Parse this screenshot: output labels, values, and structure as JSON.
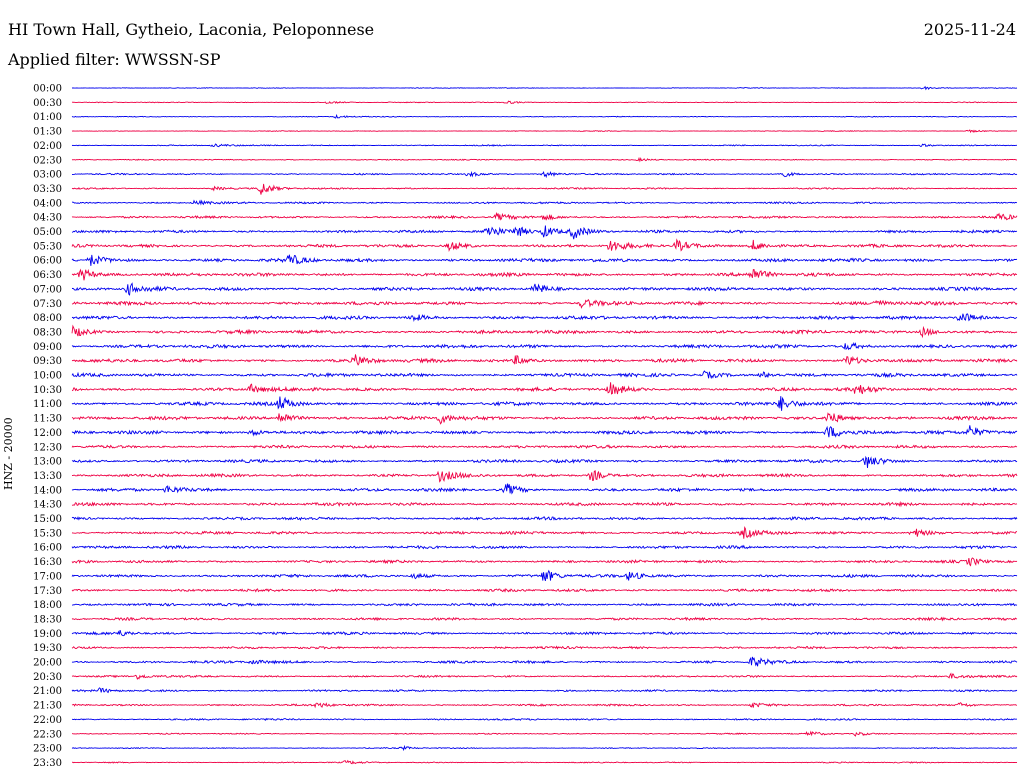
{
  "header": {
    "station": "HI Town Hall, Gytheio, Laconia, Peloponnese",
    "date": "2025-11-24",
    "filter": "Applied filter: WWSSN-SP"
  },
  "chart_data": {
    "type": "line",
    "title": "HI Town Hall, Gytheio, Laconia, Peloponnese",
    "subtitle": "Applied filter: WWSSN-SP",
    "ylabel": "HNZ - 20000",
    "xlabel": "",
    "colors": [
      "#0000ee",
      "#ee0044"
    ],
    "rows": [
      {
        "label": "00:00",
        "color": "#0000ee",
        "amp": 0.4,
        "events": [
          [
            0.9,
            0.5
          ]
        ]
      },
      {
        "label": "00:30",
        "color": "#ee0044",
        "amp": 0.4,
        "events": [
          [
            0.27,
            0.4
          ],
          [
            0.46,
            0.5
          ]
        ]
      },
      {
        "label": "01:00",
        "color": "#0000ee",
        "amp": 0.4,
        "events": [
          [
            0.28,
            0.5
          ]
        ]
      },
      {
        "label": "01:30",
        "color": "#ee0044",
        "amp": 0.4,
        "events": [
          [
            0.95,
            0.4
          ]
        ]
      },
      {
        "label": "02:00",
        "color": "#0000ee",
        "amp": 0.6,
        "events": [
          [
            0.15,
            0.5
          ],
          [
            0.9,
            0.4
          ]
        ]
      },
      {
        "label": "02:30",
        "color": "#ee0044",
        "amp": 0.5,
        "events": [
          [
            0.6,
            0.4
          ]
        ]
      },
      {
        "label": "03:00",
        "color": "#0000ee",
        "amp": 0.8,
        "events": [
          [
            0.42,
            0.8
          ],
          [
            0.5,
            0.9
          ],
          [
            0.75,
            1.0
          ]
        ]
      },
      {
        "label": "03:30",
        "color": "#ee0044",
        "amp": 0.8,
        "events": [
          [
            0.2,
            2.0
          ],
          [
            0.15,
            0.6
          ]
        ]
      },
      {
        "label": "04:00",
        "color": "#0000ee",
        "amp": 1.0,
        "events": [
          [
            0.13,
            0.7
          ]
        ]
      },
      {
        "label": "04:30",
        "color": "#ee0044",
        "amp": 1.2,
        "events": [
          [
            0.45,
            1.0
          ],
          [
            0.5,
            0.9
          ],
          [
            0.98,
            1.0
          ]
        ]
      },
      {
        "label": "05:00",
        "color": "#0000ee",
        "amp": 1.4,
        "events": [
          [
            0.44,
            2.2
          ],
          [
            0.47,
            1.6
          ],
          [
            0.5,
            1.8
          ],
          [
            0.53,
            2.2
          ]
        ]
      },
      {
        "label": "05:30",
        "color": "#ee0044",
        "amp": 1.6,
        "events": [
          [
            0.4,
            1.4
          ],
          [
            0.57,
            1.8
          ],
          [
            0.64,
            1.8
          ],
          [
            0.72,
            1.8
          ]
        ]
      },
      {
        "label": "06:00",
        "color": "#0000ee",
        "amp": 1.8,
        "events": [
          [
            0.02,
            1.8
          ],
          [
            0.23,
            1.6
          ]
        ]
      },
      {
        "label": "06:30",
        "color": "#ee0044",
        "amp": 1.8,
        "events": [
          [
            0.01,
            2.0
          ],
          [
            0.72,
            1.8
          ]
        ]
      },
      {
        "label": "07:00",
        "color": "#0000ee",
        "amp": 1.8,
        "events": [
          [
            0.06,
            1.8
          ],
          [
            0.49,
            1.6
          ]
        ]
      },
      {
        "label": "07:30",
        "color": "#ee0044",
        "amp": 1.8,
        "events": [
          [
            0.54,
            1.4
          ],
          [
            0.85,
            1.0
          ]
        ]
      },
      {
        "label": "08:00",
        "color": "#0000ee",
        "amp": 1.8,
        "events": [
          [
            0.94,
            1.8
          ],
          [
            0.36,
            1.0
          ]
        ]
      },
      {
        "label": "08:30",
        "color": "#ee0044",
        "amp": 1.8,
        "events": [
          [
            0.0,
            1.6
          ],
          [
            0.9,
            1.4
          ]
        ]
      },
      {
        "label": "09:00",
        "color": "#0000ee",
        "amp": 1.8,
        "events": [
          [
            0.82,
            1.2
          ]
        ]
      },
      {
        "label": "09:30",
        "color": "#ee0044",
        "amp": 1.8,
        "events": [
          [
            0.3,
            1.6
          ],
          [
            0.47,
            1.4
          ],
          [
            0.82,
            1.6
          ]
        ]
      },
      {
        "label": "10:00",
        "color": "#0000ee",
        "amp": 1.8,
        "events": [
          [
            0.67,
            1.0
          ],
          [
            0.73,
            1.0
          ]
        ]
      },
      {
        "label": "10:30",
        "color": "#ee0044",
        "amp": 1.8,
        "events": [
          [
            0.19,
            1.4
          ],
          [
            0.57,
            1.8
          ],
          [
            0.83,
            1.6
          ]
        ]
      },
      {
        "label": "11:00",
        "color": "#0000ee",
        "amp": 1.8,
        "events": [
          [
            0.22,
            2.0
          ],
          [
            0.75,
            2.2
          ]
        ]
      },
      {
        "label": "11:30",
        "color": "#ee0044",
        "amp": 1.8,
        "events": [
          [
            0.22,
            2.0
          ],
          [
            0.39,
            1.6
          ],
          [
            0.8,
            2.2
          ]
        ]
      },
      {
        "label": "12:00",
        "color": "#0000ee",
        "amp": 1.8,
        "events": [
          [
            0.8,
            2.2
          ],
          [
            0.95,
            2.0
          ],
          [
            0.19,
            1.0
          ]
        ]
      },
      {
        "label": "12:30",
        "color": "#ee0044",
        "amp": 1.6,
        "events": []
      },
      {
        "label": "13:00",
        "color": "#0000ee",
        "amp": 1.6,
        "events": [
          [
            0.84,
            2.2
          ]
        ]
      },
      {
        "label": "13:30",
        "color": "#ee0044",
        "amp": 1.6,
        "events": [
          [
            0.39,
            1.8
          ],
          [
            0.55,
            1.8
          ]
        ]
      },
      {
        "label": "14:00",
        "color": "#0000ee",
        "amp": 1.6,
        "events": [
          [
            0.46,
            1.8
          ],
          [
            0.1,
            1.2
          ]
        ]
      },
      {
        "label": "14:30",
        "color": "#ee0044",
        "amp": 1.6,
        "events": []
      },
      {
        "label": "15:00",
        "color": "#0000ee",
        "amp": 1.5,
        "events": []
      },
      {
        "label": "15:30",
        "color": "#ee0044",
        "amp": 1.5,
        "events": [
          [
            0.71,
            1.6
          ],
          [
            0.89,
            1.6
          ]
        ]
      },
      {
        "label": "16:00",
        "color": "#0000ee",
        "amp": 1.5,
        "events": []
      },
      {
        "label": "16:30",
        "color": "#ee0044",
        "amp": 1.4,
        "events": [
          [
            0.95,
            1.2
          ]
        ]
      },
      {
        "label": "17:00",
        "color": "#0000ee",
        "amp": 1.5,
        "events": [
          [
            0.5,
            2.0
          ],
          [
            0.59,
            1.4
          ],
          [
            0.36,
            0.9
          ]
        ]
      },
      {
        "label": "17:30",
        "color": "#ee0044",
        "amp": 1.4,
        "events": []
      },
      {
        "label": "18:00",
        "color": "#0000ee",
        "amp": 1.4,
        "events": []
      },
      {
        "label": "18:30",
        "color": "#ee0044",
        "amp": 1.3,
        "events": []
      },
      {
        "label": "19:00",
        "color": "#0000ee",
        "amp": 1.4,
        "events": [
          [
            0.05,
            0.8
          ]
        ]
      },
      {
        "label": "19:30",
        "color": "#ee0044",
        "amp": 1.2,
        "events": []
      },
      {
        "label": "20:00",
        "color": "#0000ee",
        "amp": 1.3,
        "events": [
          [
            0.72,
            1.6
          ],
          [
            0.19,
            0.8
          ]
        ]
      },
      {
        "label": "20:30",
        "color": "#ee0044",
        "amp": 1.0,
        "events": [
          [
            0.07,
            0.8
          ],
          [
            0.93,
            0.8
          ]
        ]
      },
      {
        "label": "21:00",
        "color": "#0000ee",
        "amp": 1.0,
        "events": [
          [
            0.03,
            0.7
          ]
        ]
      },
      {
        "label": "21:30",
        "color": "#ee0044",
        "amp": 1.0,
        "events": [
          [
            0.26,
            0.8
          ],
          [
            0.72,
            0.8
          ],
          [
            0.94,
            0.7
          ]
        ]
      },
      {
        "label": "22:00",
        "color": "#0000ee",
        "amp": 0.9,
        "events": []
      },
      {
        "label": "22:30",
        "color": "#ee0044",
        "amp": 0.6,
        "events": [
          [
            0.78,
            0.8
          ],
          [
            0.83,
            0.7
          ]
        ]
      },
      {
        "label": "23:00",
        "color": "#0000ee",
        "amp": 0.5,
        "events": [
          [
            0.35,
            0.5
          ]
        ]
      },
      {
        "label": "23:30",
        "color": "#ee0044",
        "amp": 0.6,
        "events": [
          [
            0.29,
            0.5
          ]
        ]
      }
    ]
  }
}
